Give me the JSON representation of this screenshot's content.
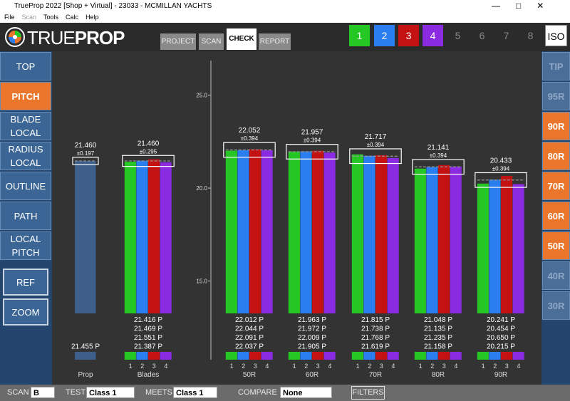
{
  "window": {
    "title": "TrueProp 2022 [Shop + Virtual] - 23033 - MCMILLAN YACHTS",
    "menu": [
      "File",
      "Scan",
      "Tools",
      "Calc",
      "Help"
    ]
  },
  "header": {
    "logo_true": "TRUE",
    "logo_prop": "PROP",
    "tabs": [
      "PROJECT",
      "SCAN",
      "CHECK",
      "REPORT"
    ],
    "blade_buttons": [
      "1",
      "2",
      "3",
      "4",
      "5",
      "6",
      "7",
      "8"
    ],
    "iso": "ISO"
  },
  "left_nav": [
    "TOP",
    "PITCH",
    "BLADE LOCAL",
    "RADIUS LOCAL",
    "OUTLINE",
    "PATH",
    "LOCAL PITCH",
    "REF",
    "ZOOM"
  ],
  "right_nav": [
    "TIP",
    "95R",
    "90R",
    "80R",
    "70R",
    "60R",
    "50R",
    "40R",
    "30R"
  ],
  "chart_data": {
    "type": "bar",
    "ylim": [
      10.77,
      26.86
    ],
    "yticks": [
      {
        "value": 15,
        "label": "15.0"
      },
      {
        "value": 20,
        "label": "20.0"
      },
      {
        "value": 25,
        "label": "25.0"
      }
    ],
    "series": [
      {
        "name": "1",
        "color": "#25c725"
      },
      {
        "name": "2",
        "color": "#2a7ef0"
      },
      {
        "name": "3",
        "color": "#c41212"
      },
      {
        "name": "4",
        "color": "#8a2be2"
      }
    ],
    "prop_color": "#3d5f8a",
    "groups": [
      {
        "name": "Prop",
        "values": [
          21.455
        ],
        "value_labels": [
          "21.455 P"
        ],
        "mean": 21.46,
        "mean_label": "21.460",
        "tol": 0.197,
        "tol_label": "±0.197"
      },
      {
        "name": "Blades",
        "values": [
          21.416,
          21.469,
          21.551,
          21.387
        ],
        "value_labels": [
          "21.416 P",
          "21.469 P",
          "21.551 P",
          "21.387 P"
        ],
        "mean": 21.46,
        "mean_label": "21.460",
        "tol": 0.295,
        "tol_label": "±0.295"
      },
      {
        "name": "50R",
        "values": [
          22.012,
          22.044,
          22.091,
          22.037
        ],
        "value_labels": [
          "22.012 P",
          "22.044 P",
          "22.091 P",
          "22.037 P"
        ],
        "mean": 22.052,
        "mean_label": "22.052",
        "tol": 0.394,
        "tol_label": "±0.394"
      },
      {
        "name": "60R",
        "values": [
          21.963,
          21.972,
          22.009,
          21.905
        ],
        "value_labels": [
          "21.963 P",
          "21.972 P",
          "22.009 P",
          "21.905 P"
        ],
        "mean": 21.957,
        "mean_label": "21.957",
        "tol": 0.394,
        "tol_label": "±0.394"
      },
      {
        "name": "70R",
        "values": [
          21.815,
          21.738,
          21.768,
          21.619
        ],
        "value_labels": [
          "21.815 P",
          "21.738 P",
          "21.768 P",
          "21.619 P"
        ],
        "mean": 21.717,
        "mean_label": "21.717",
        "tol": 0.394,
        "tol_label": "±0.394"
      },
      {
        "name": "80R",
        "values": [
          21.048,
          21.135,
          21.235,
          21.158
        ],
        "value_labels": [
          "21.048 P",
          "21.135 P",
          "21.235 P",
          "21.158 P"
        ],
        "mean": 21.141,
        "mean_label": "21.141",
        "tol": 0.394,
        "tol_label": "±0.394"
      },
      {
        "name": "90R",
        "values": [
          20.241,
          20.454,
          20.65,
          20.215
        ],
        "value_labels": [
          "20.241 P",
          "20.454 P",
          "20.650 P",
          "20.215 P"
        ],
        "mean": 20.433,
        "mean_label": "20.433",
        "tol": 0.394,
        "tol_label": "±0.394"
      }
    ]
  },
  "footer": {
    "scan_label": "SCAN",
    "scan_value": "B",
    "test_label": "TEST",
    "test_value": "Class 1",
    "meets_label": "MEETS",
    "meets_value": "Class 1",
    "compare_label": "COMPARE",
    "compare_value": "None",
    "filters": "FILTERS"
  }
}
